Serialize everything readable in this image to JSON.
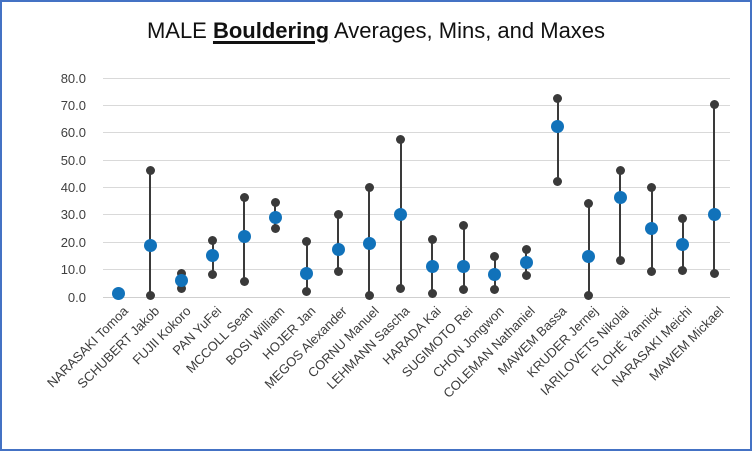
{
  "window": {
    "background": "#FFFFFF",
    "border_color": "#4472C4"
  },
  "title": {
    "prefix": "MALE ",
    "emphasis": "Bouldering",
    "suffix": " Averages, Mins, and Maxes"
  },
  "chart_data": {
    "type": "scatter",
    "subtype": "high-low-average points with whisker lines",
    "title": "MALE Bouldering Averages, Mins, and Maxes",
    "xlabel": "",
    "ylabel": "",
    "ylim": [
      0,
      80
    ],
    "ytick_labels": [
      "0.0",
      "10.0",
      "20.0",
      "30.0",
      "40.0",
      "50.0",
      "60.0",
      "70.0",
      "80.0"
    ],
    "grid": true,
    "legend_position": "none",
    "categories": [
      "NARASAKI Tomoa",
      "SCHUBERT Jakob",
      "FUJII Kokoro",
      "PAN YuFei",
      "MCCOLL Sean",
      "BOSI William",
      "HOJER Jan",
      "MEGOS Alexander",
      "CORNU Manuel",
      "LEHMANN Sascha",
      "HARADA Kai",
      "SUGIMOTO Rei",
      "CHON Jongwon",
      "COLEMAN Nathaniel",
      "MAWEM Bassa",
      "KRUDER Jernej",
      "IARILOVETS Nikolai",
      "FLOHÉ Yannick",
      "NARASAKI Meichi",
      "MAWEM Mickael"
    ],
    "series": [
      {
        "name": "Min",
        "values": [
          1.0,
          0.5,
          3.0,
          8.0,
          5.5,
          25.0,
          2.0,
          9.0,
          0.5,
          3.0,
          1.0,
          2.5,
          2.5,
          7.5,
          42.0,
          0.5,
          13.0,
          9.0,
          9.5,
          8.5
        ]
      },
      {
        "name": "Average",
        "values": [
          1.0,
          18.5,
          6.0,
          15.0,
          22.0,
          29.0,
          8.5,
          17.0,
          19.5,
          30.0,
          11.0,
          11.0,
          8.0,
          12.5,
          62.0,
          14.5,
          36.0,
          25.0,
          19.0,
          30.0
        ]
      },
      {
        "name": "Max",
        "values": [
          1.0,
          46.0,
          8.5,
          20.5,
          36.0,
          34.5,
          20.0,
          30.0,
          40.0,
          57.5,
          21.0,
          26.0,
          14.5,
          17.0,
          72.5,
          34.0,
          46.0,
          40.0,
          28.5,
          70.0
        ]
      }
    ],
    "point_colors": {
      "average": "#1172BA",
      "min_max": "#3A3A3A"
    },
    "gridline_color": "#D9D9D9"
  }
}
